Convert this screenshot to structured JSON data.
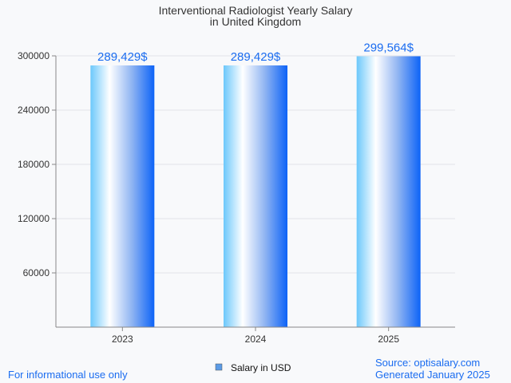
{
  "chart_data": {
    "type": "bar",
    "title": [
      "Interventional Radiologist Yearly Salary",
      "in United Kingdom"
    ],
    "categories": [
      "2023",
      "2024",
      "2025"
    ],
    "series": [
      {
        "name": "Salary in USD",
        "values": [
          289429,
          289429,
          299564
        ]
      }
    ],
    "data_labels": [
      "289,429$",
      "289,429$",
      "299,564$"
    ],
    "yticks": [
      60000,
      120000,
      180000,
      240000,
      300000
    ],
    "ylim": [
      0,
      300000
    ],
    "grid": true,
    "legend": "bottom-center",
    "xlabel": "",
    "ylabel": ""
  },
  "footer": {
    "disclaimer": "For informational use only",
    "source": "Source: optisalary.com",
    "generated": "Generated January 2025"
  },
  "colors": {
    "label": "#1a6cf0",
    "legend_swatch": "#5b9be6"
  }
}
